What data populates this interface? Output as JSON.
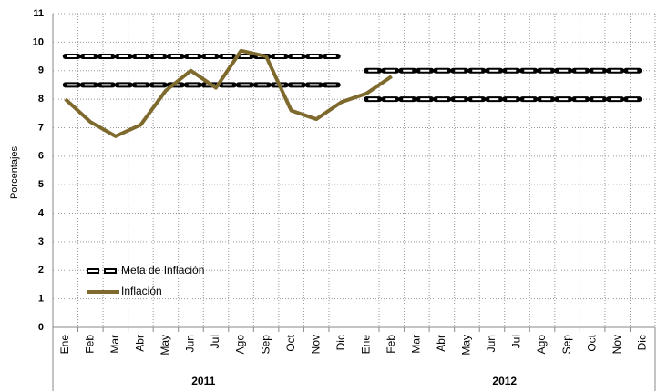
{
  "chart_data": {
    "type": "line",
    "y_label": "Porcentajes",
    "categories": [
      "Ene",
      "Feb",
      "Mar",
      "Abr",
      "May",
      "Jun",
      "Jul",
      "Ago",
      "Sep",
      "Oct",
      "Nov",
      "Dic",
      "Ene",
      "Feb",
      "Mar",
      "Abr",
      "May",
      "Jun",
      "Jul",
      "Ago",
      "Sep",
      "Oct",
      "Nov",
      "Dic"
    ],
    "years": [
      "2011",
      "2012"
    ],
    "series": [
      {
        "name": "Meta de Inflación",
        "color": "#000000",
        "style": "dashed",
        "upper": [
          9.5,
          9.5,
          9.5,
          9.5,
          9.5,
          9.5,
          9.5,
          9.5,
          9.5,
          9.5,
          9.5,
          9.5,
          9,
          9,
          9,
          9,
          9,
          9,
          9,
          9,
          9,
          9,
          9,
          9
        ],
        "lower": [
          8.5,
          8.5,
          8.5,
          8.5,
          8.5,
          8.5,
          8.5,
          8.5,
          8.5,
          8.5,
          8.5,
          8.5,
          8,
          8,
          8,
          8,
          8,
          8,
          8,
          8,
          8,
          8,
          8,
          8
        ]
      },
      {
        "name": "Inflación",
        "color": "#7f6a2e",
        "style": "solid",
        "values": [
          8.0,
          7.2,
          6.7,
          7.1,
          8.3,
          9.0,
          8.4,
          9.7,
          9.5,
          7.6,
          7.3,
          7.9,
          8.2,
          8.8,
          null,
          null,
          null,
          null,
          null,
          null,
          null,
          null,
          null,
          null
        ]
      }
    ],
    "ylim": [
      0,
      11
    ],
    "yticks": [
      0,
      1,
      2,
      3,
      4,
      5,
      6,
      7,
      8,
      9,
      10,
      11
    ],
    "grid": true
  }
}
